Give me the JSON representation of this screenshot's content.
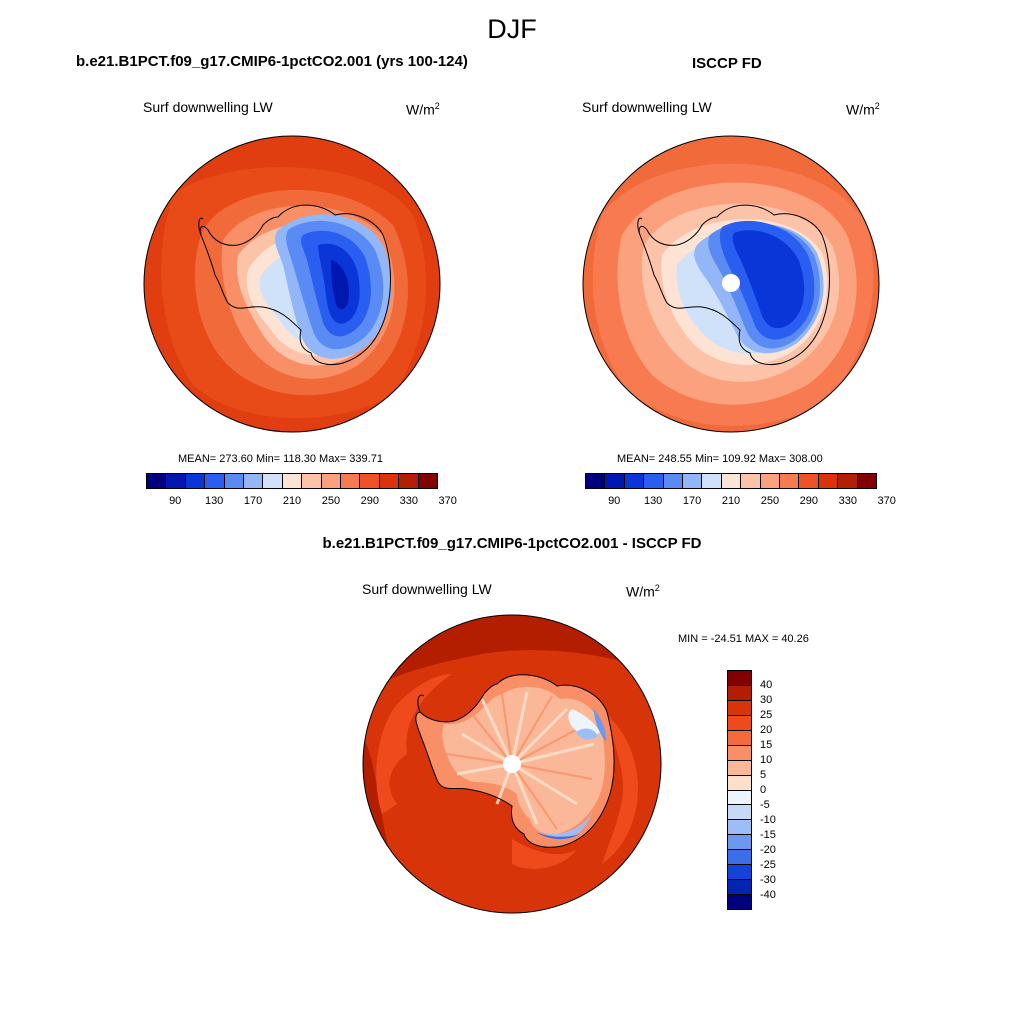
{
  "title": "DJF",
  "panels": [
    {
      "title": "b.e21.B1PCT.f09_g17.CMIP6-1pctCO2.001 (yrs 100-124)",
      "variable": "Surf downwelling LW",
      "units_base": "W/m",
      "units_exp": "2",
      "stats": "MEAN= 273.60  Min= 118.30  Max= 339.71"
    },
    {
      "title": "ISCCP FD",
      "variable": "Surf downwelling LW",
      "units_base": "W/m",
      "units_exp": "2",
      "stats": "MEAN= 248.55  Min= 109.92  Max= 308.00"
    },
    {
      "title": "b.e21.B1PCT.f09_g17.CMIP6-1pctCO2.001 - ISCCP FD",
      "variable": "Surf downwelling LW",
      "units_base": "W/m",
      "units_exp": "2",
      "stats": "MIN = -24.51 MAX =  40.26"
    }
  ],
  "colorbar_abs": {
    "colors": [
      "#00007f",
      "#0018b0",
      "#0a36d8",
      "#2a5ef0",
      "#5a8af4",
      "#92b6f8",
      "#cfe2fa",
      "#fde3d3",
      "#fcc3a8",
      "#fba17e",
      "#f77a50",
      "#f05228",
      "#dc320a",
      "#b41e04",
      "#830000"
    ],
    "labels": [
      "90",
      "130",
      "170",
      "210",
      "250",
      "290",
      "330",
      "370"
    ]
  },
  "colorbar_diff": {
    "colors": [
      "#830000",
      "#b31d00",
      "#d8340a",
      "#ee4a1c",
      "#f56a3c",
      "#f98f66",
      "#fbb898",
      "#fde0cc",
      "#eef4fc",
      "#c6daf8",
      "#9cbdf5",
      "#6c98f0",
      "#3c6ee8",
      "#1244d8",
      "#0424b0",
      "#00007f"
    ],
    "labels": [
      "40",
      "30",
      "25",
      "20",
      "15",
      "10",
      "5",
      "0",
      "-5",
      "-10",
      "-15",
      "-20",
      "-25",
      "-30",
      "-40"
    ]
  }
}
